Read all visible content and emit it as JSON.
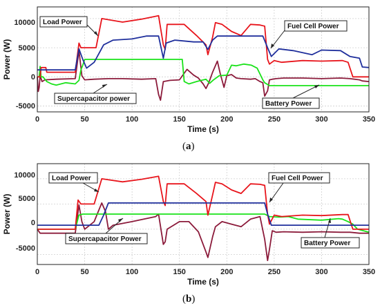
{
  "chart_data": [
    {
      "type": "line",
      "panel_label": "a",
      "xlabel": "Time (s)",
      "ylabel": "Power (W)",
      "xlim": [
        0,
        350
      ],
      "ylim": [
        -6000,
        12000
      ],
      "xticks": [
        "0",
        "50",
        "100",
        "150",
        "200",
        "250",
        "300",
        "350"
      ],
      "yticks": [
        "-5000",
        "0",
        "5000",
        "10000"
      ],
      "grid": true,
      "annotations": [
        {
          "text": "Load Power",
          "series": "red"
        },
        {
          "text": "Fuel Cell Power",
          "series": "blue"
        },
        {
          "text": "Supercapacitor power",
          "series": "maroon"
        },
        {
          "text": "Battery Power",
          "series": "green"
        }
      ],
      "series": [
        {
          "color": "#e8141b",
          "name": "Load Power",
          "x": [
            0,
            3,
            4,
            9,
            10,
            40,
            44,
            46,
            48,
            50,
            55,
            62,
            68,
            90,
            110,
            128,
            133,
            135,
            137,
            155,
            168,
            178,
            180,
            185,
            188,
            195,
            205,
            215,
            225,
            235,
            240,
            243,
            245,
            250,
            258,
            280,
            300,
            322,
            328,
            333,
            350
          ],
          "y": [
            0,
            0,
            1600,
            1600,
            800,
            800,
            5800,
            5000,
            5000,
            5000,
            5000,
            5000,
            10000,
            9400,
            9900,
            10500,
            5500,
            4700,
            9000,
            9000,
            7100,
            5500,
            3800,
            6800,
            9300,
            9000,
            7800,
            7100,
            9000,
            8900,
            8700,
            3000,
            2200,
            2800,
            2500,
            2800,
            2700,
            2800,
            2500,
            0,
            0
          ]
        },
        {
          "color": "#1f2f9c",
          "name": "Fuel Cell Power",
          "x": [
            0,
            40,
            44,
            48,
            52,
            60,
            70,
            80,
            100,
            115,
            128,
            133,
            136,
            145,
            165,
            175,
            180,
            185,
            190,
            210,
            238,
            243,
            247,
            255,
            270,
            290,
            300,
            320,
            330,
            340,
            343,
            350
          ],
          "y": [
            1200,
            1200,
            4800,
            3000,
            1500,
            2500,
            5500,
            6300,
            6500,
            7000,
            7000,
            3200,
            5800,
            6300,
            6000,
            6000,
            4700,
            6300,
            7000,
            7000,
            7000,
            5000,
            3500,
            4800,
            4500,
            3800,
            4600,
            4500,
            3500,
            3200,
            1700,
            1600
          ]
        },
        {
          "color": "#19e219",
          "name": "Battery Power",
          "x": [
            0,
            2,
            3,
            4,
            6,
            10,
            15,
            20,
            30,
            40,
            44,
            46,
            48,
            50,
            153,
            155,
            160,
            168,
            173,
            178,
            182,
            186,
            192,
            200,
            205,
            210,
            218,
            226,
            232,
            238,
            240,
            245,
            250,
            280,
            300,
            350
          ],
          "y": [
            0,
            0,
            1800,
            0,
            0,
            -800,
            -1200,
            -1400,
            -1000,
            -1200,
            -600,
            1200,
            2000,
            3000,
            3000,
            -800,
            -1200,
            -800,
            -600,
            -400,
            -1100,
            -500,
            200,
            300,
            2000,
            1900,
            2200,
            2000,
            1500,
            -500,
            -1000,
            -1500,
            -1500,
            -1500,
            -1500,
            -1500
          ]
        },
        {
          "color": "#8b1a3a",
          "name": "Supercapacitor power",
          "x": [
            0,
            1,
            2,
            3,
            5,
            8,
            20,
            40,
            44,
            47,
            50,
            60,
            75,
            90,
            110,
            125,
            128,
            130,
            133,
            140,
            150,
            158,
            165,
            170,
            175,
            178,
            181,
            185,
            190,
            193,
            197,
            200,
            205,
            210,
            215,
            225,
            230,
            235,
            238,
            240,
            243,
            245,
            248,
            252,
            260,
            280,
            300,
            320,
            330,
            340,
            343,
            350
          ],
          "y": [
            0,
            -2500,
            -1800,
            200,
            -800,
            -500,
            -400,
            -300,
            4500,
            200,
            -500,
            -400,
            -300,
            -300,
            -400,
            -300,
            -3000,
            -4000,
            -800,
            -600,
            -500,
            1300,
            300,
            -200,
            -1200,
            -2000,
            -1000,
            800,
            2700,
            600,
            -1800,
            200,
            400,
            -200,
            -300,
            -400,
            -300,
            -800,
            -1000,
            -3300,
            -2400,
            -500,
            -400,
            -300,
            -200,
            -200,
            -300,
            -200,
            -300,
            -500,
            -700,
            -800
          ]
        }
      ]
    },
    {
      "type": "line",
      "panel_label": "b",
      "xlabel": "Time (s)",
      "ylabel": "Power (W)",
      "xlim": [
        0,
        350
      ],
      "ylim": [
        -7000,
        13000
      ],
      "xticks": [
        "0",
        "50",
        "100",
        "150",
        "200",
        "250",
        "300",
        "350"
      ],
      "yticks": [
        "-5000",
        "0",
        "5000",
        "10000"
      ],
      "grid": true,
      "annotations": [
        {
          "text": "Load Power",
          "series": "red"
        },
        {
          "text": "Fuel Cell Power",
          "series": "blue"
        },
        {
          "text": "Supercapacitor Power",
          "series": "maroon"
        },
        {
          "text": "Battery Power",
          "series": "green"
        }
      ],
      "series": [
        {
          "color": "#e8141b",
          "name": "Load Power",
          "x": [
            0,
            3,
            40,
            43,
            46,
            48,
            55,
            60,
            68,
            90,
            110,
            128,
            133,
            135,
            137,
            155,
            168,
            178,
            180,
            185,
            188,
            195,
            205,
            215,
            225,
            235,
            240,
            243,
            245,
            250,
            258,
            280,
            300,
            322,
            328,
            333,
            350
          ],
          "y": [
            0,
            0,
            0,
            5800,
            5000,
            5000,
            5000,
            5000,
            10000,
            9400,
            9900,
            10500,
            5500,
            4700,
            9000,
            9000,
            7100,
            5500,
            2800,
            6800,
            9300,
            9000,
            7800,
            7100,
            9000,
            8900,
            8700,
            3000,
            1000,
            2800,
            2500,
            2800,
            2700,
            2900,
            2900,
            0,
            0
          ]
        },
        {
          "color": "#1f2f9c",
          "name": "Fuel Cell Power",
          "x": [
            0,
            65,
            70,
            75,
            240,
            243,
            247,
            255,
            350
          ],
          "y": [
            800,
            800,
            2800,
            5200,
            5200,
            3000,
            800,
            800,
            800
          ]
        },
        {
          "color": "#19e219",
          "name": "Battery Power",
          "x": [
            0,
            40,
            44,
            48,
            52,
            240,
            245,
            255,
            265,
            275,
            300,
            318,
            322,
            328,
            333,
            338,
            350
          ],
          "y": [
            0,
            0,
            2800,
            3000,
            3000,
            3000,
            2500,
            2400,
            2500,
            2000,
            1800,
            2100,
            2000,
            1500,
            1000,
            0,
            -600
          ]
        },
        {
          "color": "#8b1a3a",
          "name": "Supercapacitor Power",
          "x": [
            0,
            3,
            5,
            40,
            44,
            47,
            50,
            60,
            68,
            72,
            75,
            80,
            100,
            125,
            128,
            133,
            135,
            137,
            150,
            160,
            170,
            178,
            180,
            185,
            188,
            195,
            205,
            215,
            225,
            235,
            240,
            243,
            245,
            248,
            252,
            260,
            280,
            300,
            320,
            330,
            340,
            350
          ],
          "y": [
            0,
            -800,
            -800,
            -800,
            4800,
            1500,
            0,
            1500,
            5200,
            3500,
            0,
            800,
            1500,
            2500,
            3000,
            -3000,
            -2500,
            0,
            1500,
            1500,
            -500,
            -4500,
            -5600,
            -1500,
            500,
            1500,
            1000,
            500,
            2000,
            2500,
            -2000,
            -6200,
            -4000,
            -300,
            -600,
            -500,
            -600,
            -500,
            -600,
            -600,
            -800,
            -800
          ]
        }
      ]
    }
  ]
}
